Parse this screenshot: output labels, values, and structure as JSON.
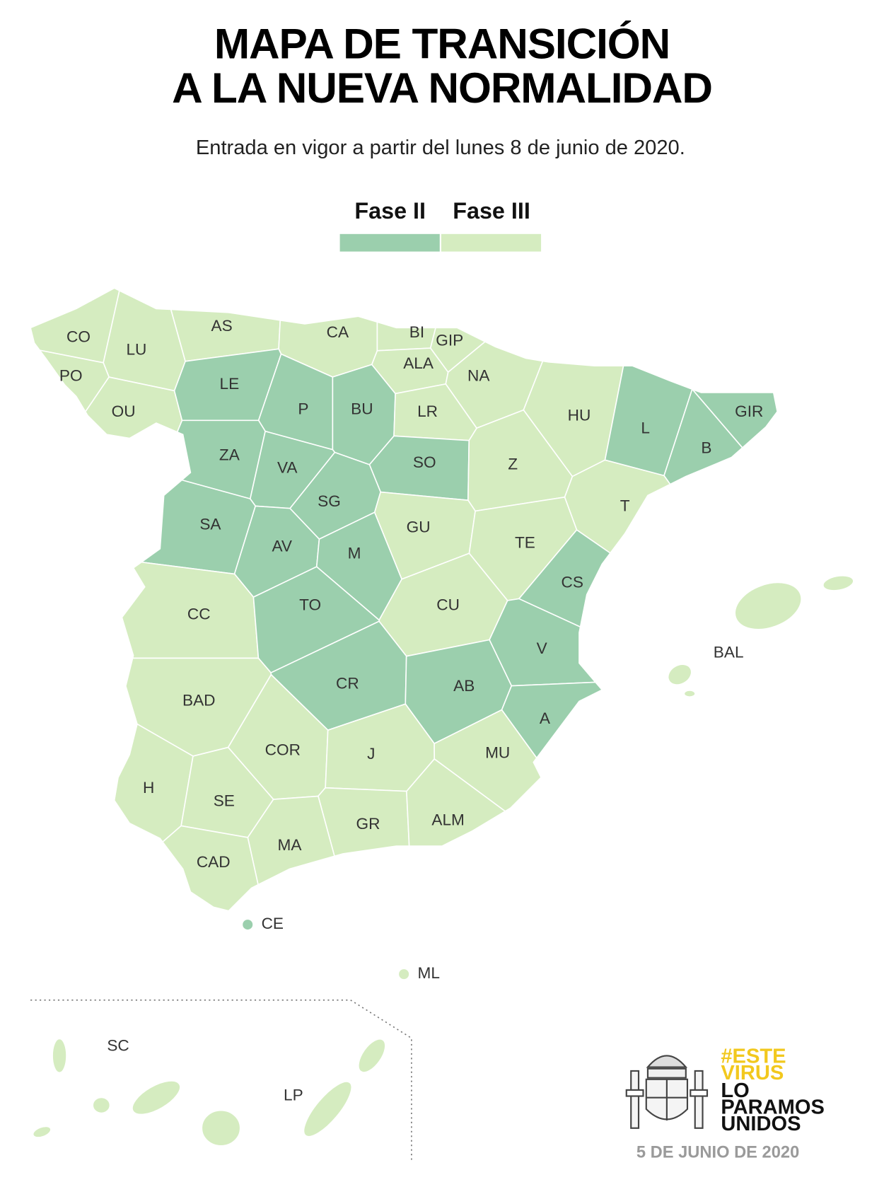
{
  "header": {
    "title_lines": [
      "MAPA DE TRANSICIÓN",
      "A LA NUEVA NORMALIDAD"
    ],
    "subtitle": "Entrada en vigor a partir del lunes 8 de junio de 2020."
  },
  "legend": [
    {
      "label": "Fase II",
      "color": "#9bcfad"
    },
    {
      "label": "Fase III",
      "color": "#d5ecc0"
    }
  ],
  "provinces": [
    {
      "code": "CO",
      "phase": "Fase III"
    },
    {
      "code": "LU",
      "phase": "Fase III"
    },
    {
      "code": "AS",
      "phase": "Fase III"
    },
    {
      "code": "CA",
      "phase": "Fase III"
    },
    {
      "code": "BI",
      "phase": "Fase III"
    },
    {
      "code": "GIP",
      "phase": "Fase III"
    },
    {
      "code": "ALA",
      "phase": "Fase III"
    },
    {
      "code": "NA",
      "phase": "Fase III"
    },
    {
      "code": "PO",
      "phase": "Fase III"
    },
    {
      "code": "OU",
      "phase": "Fase III"
    },
    {
      "code": "LE",
      "phase": "Fase II"
    },
    {
      "code": "P",
      "phase": "Fase II"
    },
    {
      "code": "BU",
      "phase": "Fase II"
    },
    {
      "code": "LR",
      "phase": "Fase III"
    },
    {
      "code": "HU",
      "phase": "Fase III"
    },
    {
      "code": "L",
      "phase": "Fase II"
    },
    {
      "code": "GIR",
      "phase": "Fase II"
    },
    {
      "code": "B",
      "phase": "Fase II"
    },
    {
      "code": "ZA",
      "phase": "Fase II"
    },
    {
      "code": "VA",
      "phase": "Fase II"
    },
    {
      "code": "SO",
      "phase": "Fase II"
    },
    {
      "code": "Z",
      "phase": "Fase III"
    },
    {
      "code": "T",
      "phase": "Fase III"
    },
    {
      "code": "SG",
      "phase": "Fase II"
    },
    {
      "code": "SA",
      "phase": "Fase II"
    },
    {
      "code": "AV",
      "phase": "Fase II"
    },
    {
      "code": "M",
      "phase": "Fase II"
    },
    {
      "code": "GU",
      "phase": "Fase III"
    },
    {
      "code": "TE",
      "phase": "Fase III"
    },
    {
      "code": "CS",
      "phase": "Fase II"
    },
    {
      "code": "CC",
      "phase": "Fase III"
    },
    {
      "code": "TO",
      "phase": "Fase II"
    },
    {
      "code": "CU",
      "phase": "Fase III"
    },
    {
      "code": "V",
      "phase": "Fase II"
    },
    {
      "code": "CR",
      "phase": "Fase II"
    },
    {
      "code": "AB",
      "phase": "Fase II"
    },
    {
      "code": "BAD",
      "phase": "Fase III"
    },
    {
      "code": "A",
      "phase": "Fase II"
    },
    {
      "code": "COR",
      "phase": "Fase III"
    },
    {
      "code": "J",
      "phase": "Fase III"
    },
    {
      "code": "MU",
      "phase": "Fase III"
    },
    {
      "code": "H",
      "phase": "Fase III"
    },
    {
      "code": "SE",
      "phase": "Fase III"
    },
    {
      "code": "GR",
      "phase": "Fase III"
    },
    {
      "code": "ALM",
      "phase": "Fase III"
    },
    {
      "code": "MA",
      "phase": "Fase III"
    },
    {
      "code": "CAD",
      "phase": "Fase III"
    },
    {
      "code": "BAL",
      "phase": "Fase III"
    },
    {
      "code": "CE",
      "phase": "Fase II"
    },
    {
      "code": "ML",
      "phase": "Fase III"
    },
    {
      "code": "SC",
      "phase": "Fase III"
    },
    {
      "code": "LP",
      "phase": "Fase III"
    }
  ],
  "logo": {
    "hashtag_lines": [
      "#ESTE",
      "VIRUS"
    ],
    "motto_lines": [
      "LO",
      "PARAMOS",
      "UNIDOS"
    ]
  },
  "date": "5 DE JUNIO DE 2020"
}
